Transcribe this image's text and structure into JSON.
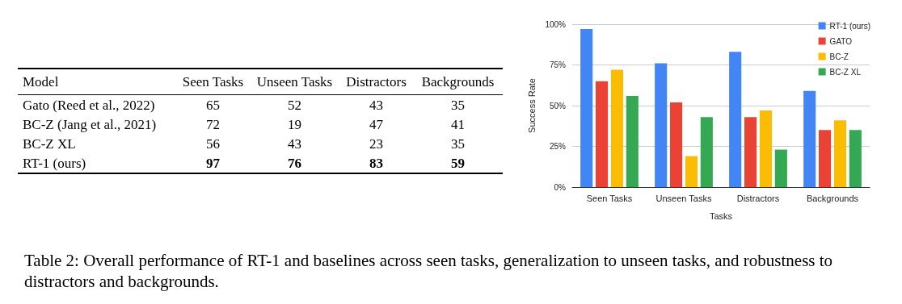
{
  "chart_data": [
    {
      "type": "heatmap",
      "ylabel": "Model",
      "categories": [
        "Seen Tasks",
        "Unseen Tasks",
        "Distractors",
        "Backgrounds"
      ],
      "y_categories": [
        "Gato (Reed et al., 2022)",
        "BC-Z (Jang et al., 2021)",
        "BC-Z XL",
        "RT-1 (ours)"
      ],
      "cells": [
        [
          65,
          52,
          43,
          35
        ],
        [
          72,
          19,
          47,
          41
        ],
        [
          56,
          43,
          23,
          35
        ],
        [
          97,
          76,
          83,
          59
        ]
      ],
      "data_labels": true
    },
    {
      "type": "bar",
      "categories": [
        "Seen Tasks",
        "Unseen Tasks",
        "Distractors",
        "Backgrounds"
      ],
      "series": [
        {
          "name": "RT-1 (ours)",
          "color": "#4285f4",
          "values": [
            97,
            76,
            83,
            59
          ]
        },
        {
          "name": "GATO",
          "color": "#ea4335",
          "values": [
            65,
            52,
            43,
            35
          ]
        },
        {
          "name": "BC-Z",
          "color": "#fbbc04",
          "values": [
            72,
            19,
            47,
            41
          ]
        },
        {
          "name": "BC-Z XL",
          "color": "#34a853",
          "values": [
            56,
            43,
            23,
            35
          ]
        }
      ],
      "xlabel": "Tasks",
      "ylabel": "Success Rate",
      "ylim": [
        0,
        100
      ],
      "yticks": [
        {
          "value": 0,
          "label": "0%"
        },
        {
          "value": 25,
          "label": "25%"
        },
        {
          "value": 50,
          "label": "50%"
        },
        {
          "value": 75,
          "label": "75%"
        },
        {
          "value": 100,
          "label": "100%"
        }
      ],
      "grid": "y",
      "legend": "top right",
      "annotations": [
        "Table 2: Overall performance of RT-1 and baselines across seen tasks, generalization to unseen tasks, and robustness to distractors and backgrounds."
      ]
    }
  ]
}
